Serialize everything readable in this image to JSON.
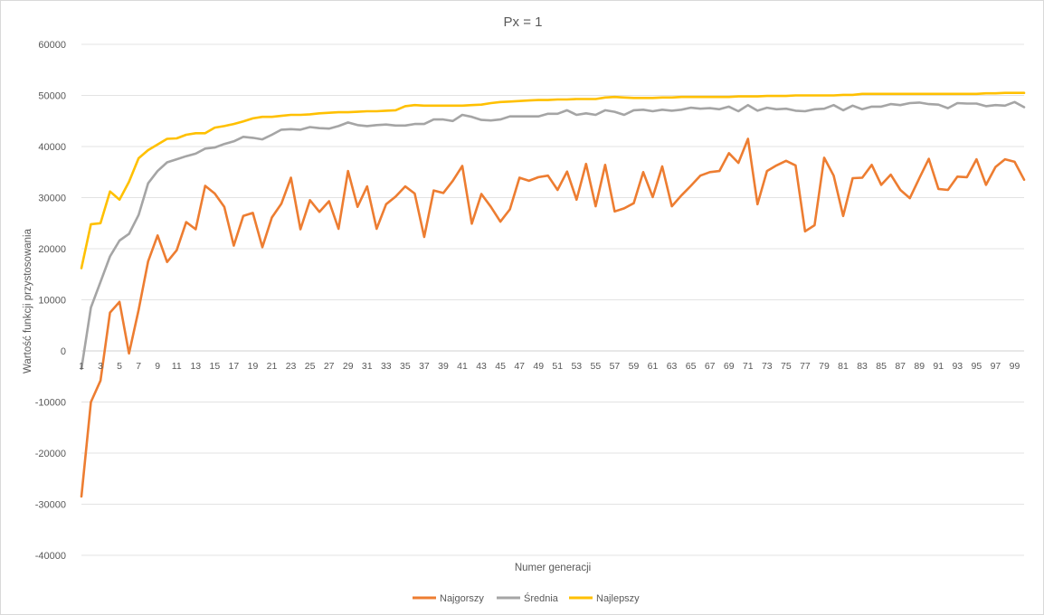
{
  "chart_data": {
    "type": "line",
    "title": "Px = 1",
    "xlabel": "Numer generacji",
    "ylabel": "Wartość funkcji przystosowania",
    "ylim": [
      -40000,
      60000
    ],
    "yticks": [
      60000,
      50000,
      40000,
      30000,
      20000,
      10000,
      0,
      -10000,
      -20000,
      -30000,
      -40000
    ],
    "xticks": [
      1,
      3,
      5,
      7,
      9,
      11,
      13,
      15,
      17,
      19,
      21,
      23,
      25,
      27,
      29,
      31,
      33,
      35,
      37,
      39,
      41,
      43,
      45,
      47,
      49,
      51,
      53,
      55,
      57,
      59,
      61,
      63,
      65,
      67,
      69,
      71,
      73,
      75,
      77,
      79,
      81,
      83,
      85,
      87,
      89,
      91,
      93,
      95,
      97,
      99
    ],
    "x": [
      1,
      2,
      3,
      4,
      5,
      6,
      7,
      8,
      9,
      10,
      11,
      12,
      13,
      14,
      15,
      16,
      17,
      18,
      19,
      20,
      21,
      22,
      23,
      24,
      25,
      26,
      27,
      28,
      29,
      30,
      31,
      32,
      33,
      34,
      35,
      36,
      37,
      38,
      39,
      40,
      41,
      42,
      43,
      44,
      45,
      46,
      47,
      48,
      49,
      50,
      51,
      52,
      53,
      54,
      55,
      56,
      57,
      58,
      59,
      60,
      61,
      62,
      63,
      64,
      65,
      66,
      67,
      68,
      69,
      70,
      71,
      72,
      73,
      74,
      75,
      76,
      77,
      78,
      79,
      80,
      81,
      82,
      83,
      84,
      85,
      86,
      87,
      88,
      89,
      90,
      91,
      92,
      93,
      94,
      95,
      96,
      97,
      98,
      99,
      100
    ],
    "grid": true,
    "legend_position": "bottom",
    "series": [
      {
        "name": "Najgorszy",
        "color": "#ED7D31",
        "values": [
          -28500,
          -10000,
          -5800,
          7500,
          9600,
          -500,
          8000,
          17500,
          22600,
          17400,
          19700,
          25200,
          23800,
          32300,
          30800,
          28200,
          20600,
          26400,
          27000,
          20300,
          26100,
          28800,
          33900,
          23800,
          29500,
          27200,
          29300,
          23900,
          35200,
          28200,
          32200,
          23900,
          28700,
          30200,
          32200,
          30800,
          22300,
          31400,
          30900,
          33300,
          36200,
          24900,
          30700,
          28200,
          25300,
          27700,
          33900,
          33300,
          34000,
          34300,
          31500,
          35100,
          29600,
          36600,
          28300,
          36400,
          27300,
          27900,
          28900,
          35000,
          30100,
          36100,
          28300,
          30400,
          32300,
          34300,
          35000,
          35200,
          38700,
          36800,
          41500,
          28700,
          35200,
          36300,
          37200,
          36300,
          23400,
          24600,
          37800,
          34300,
          26400,
          33800,
          33900,
          36400,
          32500,
          34500,
          31500,
          29900,
          33800,
          37600,
          31700,
          31500,
          34100,
          34000,
          37500,
          32500,
          36000,
          37500,
          37000,
          33500
        ]
      },
      {
        "name": "Średnia",
        "color": "#A5A5A5",
        "values": [
          -3500,
          8500,
          13500,
          18500,
          21600,
          22900,
          26600,
          32800,
          35200,
          36900,
          37500,
          38100,
          38600,
          39600,
          39800,
          40500,
          41000,
          41900,
          41700,
          41400,
          42300,
          43300,
          43400,
          43300,
          43800,
          43600,
          43500,
          44000,
          44700,
          44200,
          44000,
          44200,
          44300,
          44100,
          44100,
          44400,
          44400,
          45300,
          45300,
          45000,
          46200,
          45800,
          45200,
          45100,
          45300,
          45900,
          45900,
          45900,
          45900,
          46400,
          46400,
          47100,
          46200,
          46500,
          46200,
          47100,
          46800,
          46200,
          47100,
          47200,
          46900,
          47200,
          47000,
          47200,
          47600,
          47400,
          47500,
          47300,
          47800,
          46900,
          48100,
          47000,
          47600,
          47300,
          47400,
          47000,
          46900,
          47300,
          47400,
          48100,
          47100,
          48000,
          47300,
          47800,
          47800,
          48300,
          48100,
          48500,
          48600,
          48300,
          48200,
          47500,
          48500,
          48400,
          48400,
          47900,
          48100,
          48000,
          48700,
          47700
        ]
      },
      {
        "name": "Najlepszy",
        "color": "#FFC000",
        "values": [
          16200,
          24800,
          25000,
          31200,
          29600,
          33100,
          37700,
          39300,
          40400,
          41500,
          41600,
          42300,
          42600,
          42600,
          43700,
          44000,
          44400,
          44900,
          45500,
          45800,
          45800,
          46000,
          46200,
          46200,
          46300,
          46500,
          46600,
          46700,
          46700,
          46800,
          46900,
          46900,
          47000,
          47100,
          47900,
          48100,
          48000,
          48000,
          48000,
          48000,
          48000,
          48100,
          48200,
          48500,
          48700,
          48800,
          48900,
          49000,
          49100,
          49100,
          49200,
          49200,
          49300,
          49300,
          49300,
          49600,
          49700,
          49600,
          49500,
          49500,
          49500,
          49600,
          49600,
          49700,
          49700,
          49700,
          49700,
          49700,
          49700,
          49800,
          49800,
          49800,
          49900,
          49900,
          49900,
          50000,
          50000,
          50000,
          50000,
          50000,
          50100,
          50100,
          50300,
          50300,
          50300,
          50300,
          50300,
          50300,
          50300,
          50300,
          50300,
          50300,
          50300,
          50300,
          50300,
          50400,
          50400,
          50500,
          50500,
          50500
        ]
      }
    ]
  }
}
